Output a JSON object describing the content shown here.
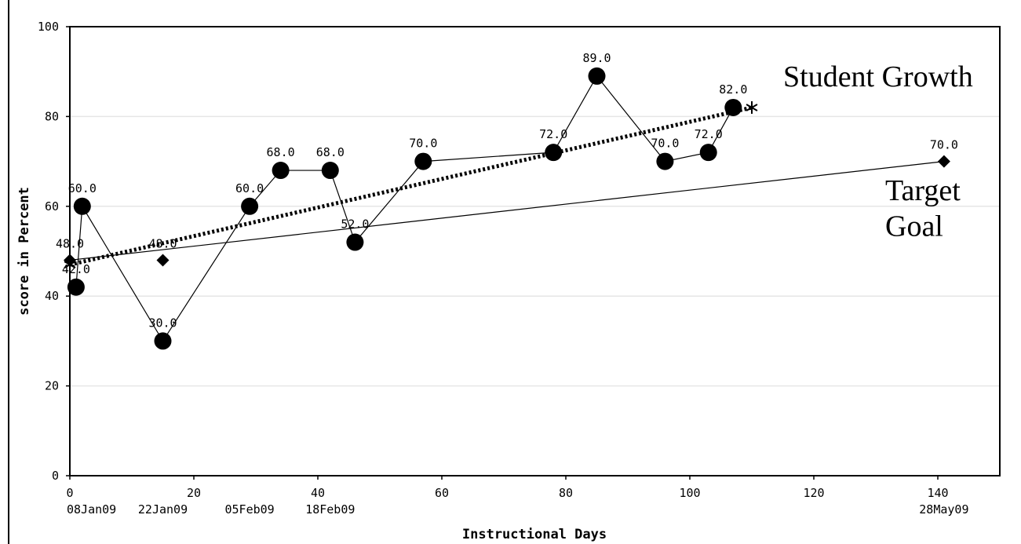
{
  "chart_data": {
    "type": "line",
    "title": "",
    "xlabel": "Instructional Days",
    "ylabel": "score in Percent",
    "xlim": [
      0,
      150
    ],
    "ylim": [
      0,
      100
    ],
    "grid": true,
    "x_ticks": [
      0,
      20,
      40,
      60,
      80,
      100,
      120,
      140
    ],
    "y_ticks": [
      0,
      20,
      40,
      60,
      80,
      100
    ],
    "date_ticks": [
      {
        "x": 0,
        "label": "08Jan09"
      },
      {
        "x": 15,
        "label": "22Jan09"
      },
      {
        "x": 29,
        "label": "05Feb09"
      },
      {
        "x": 42,
        "label": "18Feb09"
      },
      {
        "x": 141,
        "label": "28May09"
      }
    ],
    "series": [
      {
        "name": "Student Growth",
        "style": "line-with-circles",
        "color": "#000000",
        "points": [
          {
            "x": 1,
            "y": 42,
            "label": "42.0"
          },
          {
            "x": 2,
            "y": 60,
            "label": "60.0"
          },
          {
            "x": 15,
            "y": 30,
            "label": "30.0"
          },
          {
            "x": 29,
            "y": 60,
            "label": "60.0"
          },
          {
            "x": 34,
            "y": 68,
            "label": "68.0"
          },
          {
            "x": 42,
            "y": 68,
            "label": "68.0"
          },
          {
            "x": 46,
            "y": 52,
            "label": "52.0"
          },
          {
            "x": 57,
            "y": 70,
            "label": "70.0"
          },
          {
            "x": 78,
            "y": 72,
            "label": "72.0"
          },
          {
            "x": 85,
            "y": 89,
            "label": "89.0"
          },
          {
            "x": 96,
            "y": 70,
            "label": "70.0"
          },
          {
            "x": 103,
            "y": 72,
            "label": "72.0"
          },
          {
            "x": 107,
            "y": 82,
            "label": "82.0"
          }
        ]
      },
      {
        "name": "Target Goal",
        "style": "line-with-diamonds",
        "color": "#000000",
        "points": [
          {
            "x": 0,
            "y": 48,
            "label": "48.0"
          },
          {
            "x": 15,
            "y": 48,
            "label": "48.0"
          },
          {
            "x": 141,
            "y": 70,
            "label": "70.0"
          }
        ],
        "line_from": {
          "x": 0,
          "y": 48
        },
        "line_to": {
          "x": 141,
          "y": 70
        }
      },
      {
        "name": "trend",
        "style": "dotted-with-stars",
        "color": "#000000",
        "points": [
          {
            "x": 0,
            "y": 47
          },
          {
            "x": 110,
            "y": 82
          }
        ]
      }
    ],
    "annotations": [
      "Student Growth",
      "Target Goal"
    ]
  }
}
